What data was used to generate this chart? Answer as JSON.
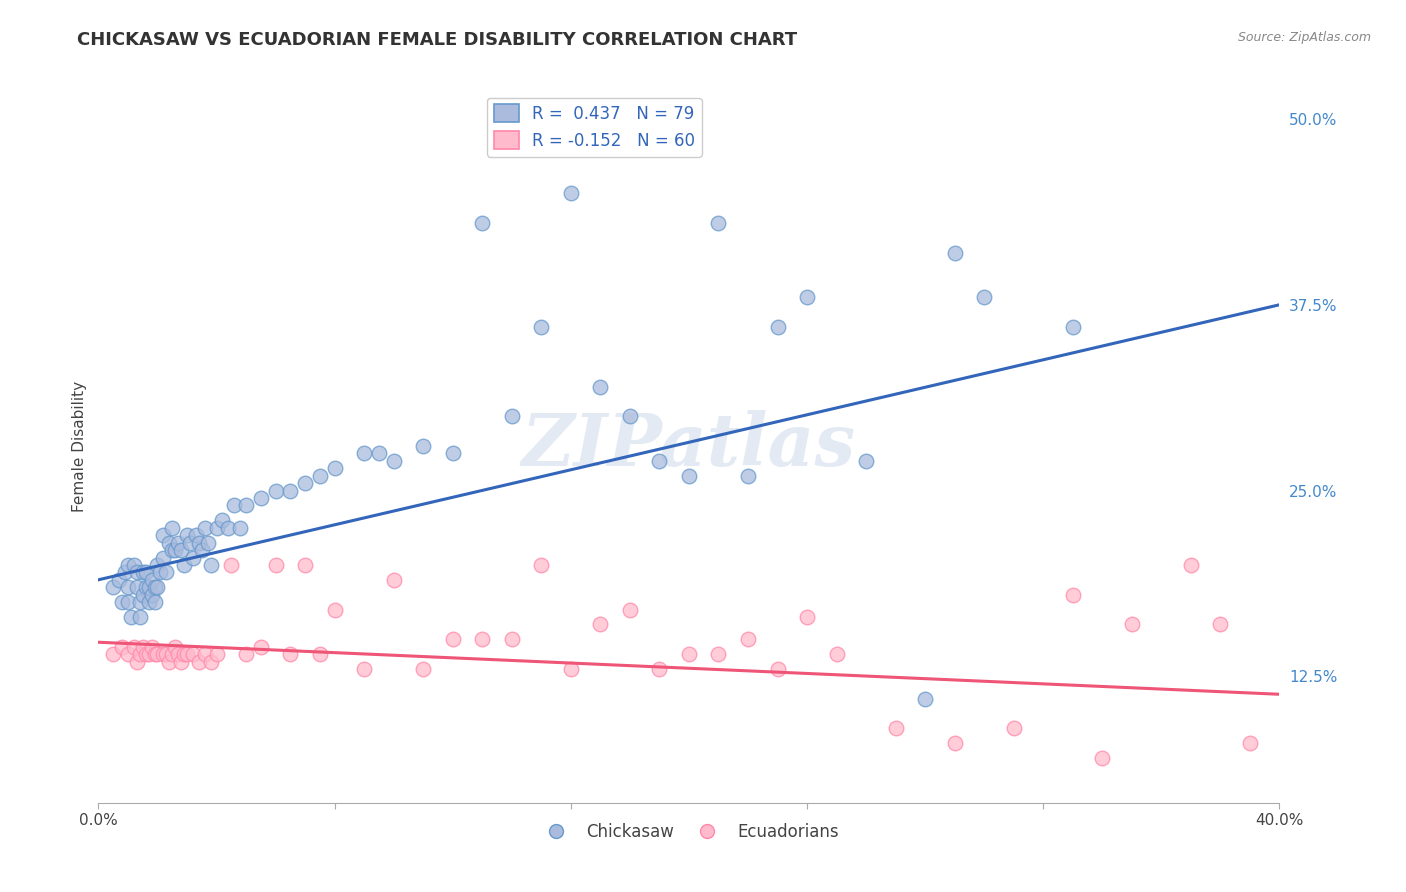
{
  "title": "CHICKASAW VS ECUADORIAN FEMALE DISABILITY CORRELATION CHART",
  "source": "Source: ZipAtlas.com",
  "ylabel": "Female Disability",
  "x_min": 0.0,
  "x_max": 0.4,
  "y_min": 0.04,
  "y_max": 0.52,
  "x_ticks": [
    0.0,
    0.08,
    0.16,
    0.24,
    0.32,
    0.4
  ],
  "x_tick_labels": [
    "0.0%",
    "",
    "",
    "",
    "",
    "40.0%"
  ],
  "y_ticks": [
    0.125,
    0.25,
    0.375,
    0.5
  ],
  "y_tick_labels": [
    "12.5%",
    "25.0%",
    "37.5%",
    "50.0%"
  ],
  "blue_R": 0.437,
  "blue_N": 79,
  "pink_R": -0.152,
  "pink_N": 60,
  "blue_fill_color": "#AABBDD",
  "blue_edge_color": "#6699CC",
  "pink_fill_color": "#FFBBCC",
  "pink_edge_color": "#FF88AA",
  "blue_line_color": "#3366BB",
  "pink_line_color": "#EE5577",
  "watermark": "ZIPatlas",
  "blue_scatter_x": [
    0.005,
    0.007,
    0.008,
    0.009,
    0.01,
    0.01,
    0.01,
    0.011,
    0.012,
    0.013,
    0.013,
    0.014,
    0.014,
    0.015,
    0.015,
    0.016,
    0.016,
    0.017,
    0.017,
    0.018,
    0.018,
    0.019,
    0.019,
    0.02,
    0.02,
    0.021,
    0.022,
    0.022,
    0.023,
    0.024,
    0.025,
    0.025,
    0.026,
    0.027,
    0.028,
    0.029,
    0.03,
    0.031,
    0.032,
    0.033,
    0.034,
    0.035,
    0.036,
    0.037,
    0.038,
    0.04,
    0.042,
    0.044,
    0.046,
    0.048,
    0.05,
    0.055,
    0.06,
    0.065,
    0.07,
    0.075,
    0.08,
    0.09,
    0.095,
    0.1,
    0.11,
    0.12,
    0.13,
    0.14,
    0.15,
    0.16,
    0.17,
    0.18,
    0.19,
    0.2,
    0.21,
    0.22,
    0.23,
    0.24,
    0.26,
    0.28,
    0.29,
    0.3,
    0.33
  ],
  "blue_scatter_y": [
    0.185,
    0.19,
    0.175,
    0.195,
    0.2,
    0.185,
    0.175,
    0.165,
    0.2,
    0.195,
    0.185,
    0.175,
    0.165,
    0.195,
    0.18,
    0.195,
    0.185,
    0.185,
    0.175,
    0.19,
    0.18,
    0.185,
    0.175,
    0.2,
    0.185,
    0.195,
    0.22,
    0.205,
    0.195,
    0.215,
    0.225,
    0.21,
    0.21,
    0.215,
    0.21,
    0.2,
    0.22,
    0.215,
    0.205,
    0.22,
    0.215,
    0.21,
    0.225,
    0.215,
    0.2,
    0.225,
    0.23,
    0.225,
    0.24,
    0.225,
    0.24,
    0.245,
    0.25,
    0.25,
    0.255,
    0.26,
    0.265,
    0.275,
    0.275,
    0.27,
    0.28,
    0.275,
    0.43,
    0.3,
    0.36,
    0.45,
    0.32,
    0.3,
    0.27,
    0.26,
    0.43,
    0.26,
    0.36,
    0.38,
    0.27,
    0.11,
    0.41,
    0.38,
    0.36
  ],
  "pink_scatter_x": [
    0.005,
    0.008,
    0.01,
    0.012,
    0.013,
    0.014,
    0.015,
    0.016,
    0.017,
    0.018,
    0.019,
    0.02,
    0.022,
    0.023,
    0.024,
    0.025,
    0.026,
    0.027,
    0.028,
    0.029,
    0.03,
    0.032,
    0.034,
    0.036,
    0.038,
    0.04,
    0.045,
    0.05,
    0.055,
    0.06,
    0.065,
    0.07,
    0.075,
    0.08,
    0.09,
    0.1,
    0.11,
    0.12,
    0.13,
    0.14,
    0.15,
    0.16,
    0.17,
    0.18,
    0.19,
    0.2,
    0.21,
    0.22,
    0.23,
    0.24,
    0.25,
    0.27,
    0.29,
    0.31,
    0.33,
    0.34,
    0.35,
    0.37,
    0.38,
    0.39
  ],
  "pink_scatter_y": [
    0.14,
    0.145,
    0.14,
    0.145,
    0.135,
    0.14,
    0.145,
    0.14,
    0.14,
    0.145,
    0.14,
    0.14,
    0.14,
    0.14,
    0.135,
    0.14,
    0.145,
    0.14,
    0.135,
    0.14,
    0.14,
    0.14,
    0.135,
    0.14,
    0.135,
    0.14,
    0.2,
    0.14,
    0.145,
    0.2,
    0.14,
    0.2,
    0.14,
    0.17,
    0.13,
    0.19,
    0.13,
    0.15,
    0.15,
    0.15,
    0.2,
    0.13,
    0.16,
    0.17,
    0.13,
    0.14,
    0.14,
    0.15,
    0.13,
    0.165,
    0.14,
    0.09,
    0.08,
    0.09,
    0.18,
    0.07,
    0.16,
    0.2,
    0.16,
    0.08
  ],
  "blue_line_x": [
    0.0,
    0.4
  ],
  "blue_line_y": [
    0.19,
    0.375
  ],
  "pink_line_x": [
    0.0,
    0.4
  ],
  "pink_line_y": [
    0.148,
    0.113
  ],
  "background_color": "#FFFFFF",
  "grid_color": "#BBBBBB",
  "title_fontsize": 13,
  "axis_label_fontsize": 11,
  "tick_fontsize": 11,
  "legend_fontsize": 12
}
